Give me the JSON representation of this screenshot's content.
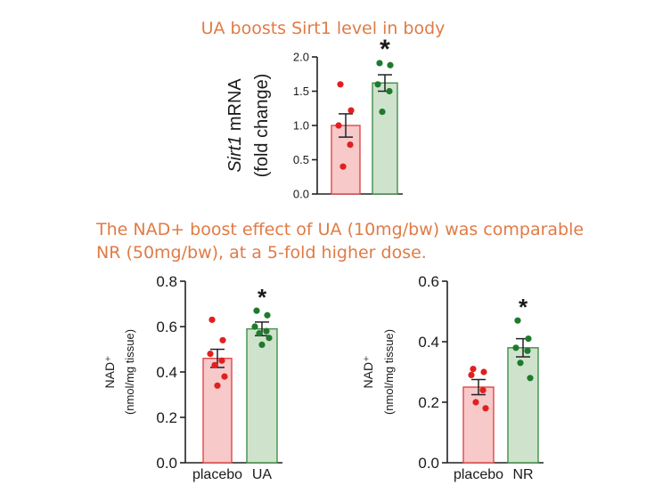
{
  "headings": {
    "top_title": "UA boosts Sirt1 level in body",
    "caption_line1": "The NAD+ boost effect of UA (10mg/bw) was comparable",
    "caption_line2": "NR (50mg/bw), at a 5-fold higher dose."
  },
  "colors": {
    "caption": "#e07b45",
    "placebo_fill": "#f7c9c9",
    "placebo_stroke": "#e04848",
    "placebo_dot": "#e02020",
    "treat_fill": "#cfe3cc",
    "treat_stroke": "#3f8f4a",
    "treat_dot": "#1f7a2c"
  },
  "chart_data": [
    {
      "type": "bar",
      "id": "sirt1",
      "ylabel_italic": "Sirt1",
      "ylabel_rest": " mRNA",
      "ylabel2": "(fold change)",
      "ylim": [
        0,
        2.0
      ],
      "ticks": [
        0,
        0.5,
        1.0,
        1.5,
        2.0
      ],
      "tick_labels": [
        "0.0",
        "0.5",
        "1.0",
        "1.5",
        "2.0"
      ],
      "categories": [
        "",
        ""
      ],
      "values": [
        1.0,
        1.62
      ],
      "errors": [
        0.17,
        0.12
      ],
      "points": [
        [
          1.6,
          1.22,
          1.0,
          0.72,
          0.4
        ],
        [
          1.91,
          1.88,
          1.6,
          1.5,
          1.2
        ]
      ],
      "significance": [
        "",
        "*"
      ]
    },
    {
      "type": "bar",
      "id": "nad-ua",
      "ylabel": "NAD⁺",
      "ylabel2": "(nmol/mg tissue)",
      "ylim": [
        0,
        0.8
      ],
      "ticks": [
        0,
        0.2,
        0.4,
        0.6,
        0.8
      ],
      "tick_labels": [
        "0.0",
        "0.2",
        "0.4",
        "0.6",
        "0.8"
      ],
      "categories": [
        "placebo",
        "UA"
      ],
      "values": [
        0.46,
        0.59
      ],
      "errors": [
        0.04,
        0.03
      ],
      "points": [
        [
          0.63,
          0.54,
          0.48,
          0.45,
          0.43,
          0.38,
          0.34
        ],
        [
          0.67,
          0.65,
          0.6,
          0.58,
          0.57,
          0.55,
          0.52
        ]
      ],
      "significance": [
        "",
        "*"
      ]
    },
    {
      "type": "bar",
      "id": "nad-nr",
      "ylabel": "NAD⁺",
      "ylabel2": "(nmol/mg tissue)",
      "ylim": [
        0,
        0.6
      ],
      "ticks": [
        0,
        0.2,
        0.4,
        0.6
      ],
      "tick_labels": [
        "0.0",
        "0.2",
        "0.4",
        "0.6"
      ],
      "categories": [
        "placebo",
        "NR"
      ],
      "values": [
        0.25,
        0.38
      ],
      "errors": [
        0.025,
        0.03
      ],
      "points": [
        [
          0.31,
          0.3,
          0.29,
          0.24,
          0.2,
          0.18
        ],
        [
          0.47,
          0.41,
          0.38,
          0.37,
          0.33,
          0.28
        ]
      ],
      "significance": [
        "",
        "*"
      ]
    }
  ]
}
